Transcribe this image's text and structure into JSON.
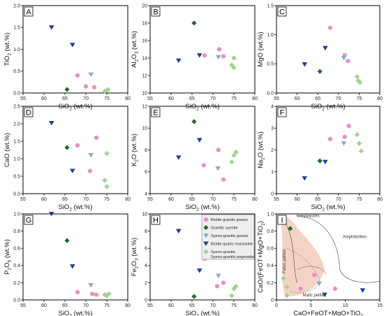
{
  "legend": {
    "items": [
      {
        "label": "Biotite granitic gneiss",
        "marker": "circle",
        "color": "#e78fc0"
      },
      {
        "label": "Granitic syenite",
        "marker": "diamond",
        "color": "#1f6b2a"
      },
      {
        "label": "Syeno-granitic gneiss",
        "marker": "triangle",
        "color": "#8ea3d6"
      },
      {
        "label": "Biotite quartz monzonite",
        "marker": "triangle",
        "color": "#1b3f8f"
      },
      {
        "label": "Syeno-granite",
        "label2": "Syeno-granitic pegmatite",
        "marker": "diamond",
        "color": "#9ad68c"
      }
    ]
  },
  "chart_data": [
    {
      "panel": "A",
      "type": "scatter",
      "ylabel_main": "TiO",
      "ylabel_sub": "2",
      "ylabel_tail": " (wt.%)",
      "xlabel_main": "SiO",
      "xlabel_sub": "2",
      "xlabel_tail": " (wt.%)",
      "xlim": [
        55,
        80
      ],
      "ylim": [
        0,
        2
      ],
      "xticks": [
        "55",
        "60",
        "65",
        "70",
        "75",
        "80"
      ],
      "yticks": [
        "0.0",
        "0.5",
        "1.0",
        "1.5",
        "2.0"
      ],
      "series": [
        {
          "group": "Biotite granitic gneiss",
          "points": [
            [
              68,
              0.4
            ],
            [
              70,
              0.15
            ],
            [
              72,
              0.13
            ]
          ]
        },
        {
          "group": "Granitic syenite",
          "points": [
            [
              65.5,
              0.08
            ]
          ]
        },
        {
          "group": "Syeno-granitic gneiss",
          "points": [
            [
              71.2,
              0.42
            ]
          ]
        },
        {
          "group": "Biotite quartz monzonite",
          "points": [
            [
              61.8,
              1.5
            ],
            [
              66.8,
              1.1
            ]
          ]
        },
        {
          "group": "Syeno-granite",
          "points": [
            [
              74.5,
              0.04
            ],
            [
              75,
              0.06
            ],
            [
              75.3,
              0.08
            ]
          ]
        }
      ]
    },
    {
      "panel": "B",
      "type": "scatter",
      "ylabel_main": "Al",
      "ylabel_sub": "2",
      "ylabel_mid": "O",
      "ylabel_sub2": "3",
      "ylabel_tail": " (wt.%)",
      "xlabel_main": "SiO",
      "xlabel_sub": "2",
      "xlabel_tail": " (wt.%)",
      "xlim": [
        55,
        80
      ],
      "ylim": [
        10,
        20
      ],
      "xticks": [
        "55",
        "60",
        "65",
        "70",
        "75",
        "80"
      ],
      "yticks": [
        "10",
        "12",
        "14",
        "16",
        "18",
        "20"
      ],
      "series": [
        {
          "group": "Biotite granitic gneiss",
          "points": [
            [
              68,
              14.3
            ],
            [
              71.5,
              15.0
            ],
            [
              72.5,
              14.2
            ]
          ]
        },
        {
          "group": "Granitic syenite",
          "points": [
            [
              65.5,
              18.0
            ]
          ]
        },
        {
          "group": "Syeno-granitic gneiss",
          "points": [
            [
              71.3,
              14.1
            ]
          ]
        },
        {
          "group": "Biotite quartz monzonite",
          "points": [
            [
              61.8,
              13.7
            ],
            [
              66.8,
              14.3
            ]
          ]
        },
        {
          "group": "Syeno-granite",
          "points": [
            [
              74.5,
              13.2
            ],
            [
              75,
              12.9
            ],
            [
              75,
              14.0
            ]
          ]
        }
      ]
    },
    {
      "panel": "C",
      "type": "scatter",
      "ylabel_main": "MgO",
      "ylabel_tail": " (wt.%)",
      "xlabel_main": "SiO",
      "xlabel_sub": "2",
      "xlabel_tail": " (wt.%)",
      "xlim": [
        55,
        80
      ],
      "ylim": [
        0,
        1.5
      ],
      "xticks": [
        "55",
        "60",
        "65",
        "70",
        "75",
        "80"
      ],
      "yticks": [
        "0.0",
        "0.5",
        "1.0",
        "1.5"
      ],
      "series": [
        {
          "group": "Biotite granitic gneiss",
          "points": [
            [
              68,
              1.12
            ],
            [
              71.5,
              0.65
            ],
            [
              72.3,
              0.55
            ]
          ]
        },
        {
          "group": "Granitic syenite",
          "points": [
            [
              65.5,
              0.37
            ]
          ]
        },
        {
          "group": "Syeno-granitic gneiss",
          "points": [
            [
              71.3,
              0.6
            ]
          ]
        },
        {
          "group": "Biotite quartz monzonite",
          "points": [
            [
              61.8,
              0.49
            ],
            [
              66.8,
              0.77
            ]
          ]
        },
        {
          "group": "Syeno-granite",
          "points": [
            [
              74.5,
              0.28
            ],
            [
              74.8,
              0.21
            ],
            [
              75.2,
              0.18
            ]
          ]
        }
      ]
    },
    {
      "panel": "D",
      "type": "scatter",
      "ylabel_main": "CaO",
      "ylabel_tail": " (wt.%)",
      "xlabel_main": "SiO",
      "xlabel_sub": "2",
      "xlabel_tail": " (wt.%)",
      "xlim": [
        55,
        80
      ],
      "ylim": [
        0,
        2.5
      ],
      "xticks": [
        "55",
        "60",
        "65",
        "70",
        "75",
        "80"
      ],
      "yticks": [
        "0.0",
        "0.5",
        "1.0",
        "1.5",
        "2.0",
        "2.5"
      ],
      "series": [
        {
          "group": "Biotite granitic gneiss",
          "points": [
            [
              68,
              1.38
            ],
            [
              71,
              0.65
            ],
            [
              72.5,
              1.6
            ]
          ]
        },
        {
          "group": "Granitic syenite",
          "points": [
            [
              65.5,
              1.32
            ]
          ]
        },
        {
          "group": "Syeno-granitic gneiss",
          "points": [
            [
              71.2,
              1.1
            ]
          ]
        },
        {
          "group": "Biotite quartz monzonite",
          "points": [
            [
              61.8,
              2.02
            ],
            [
              66.8,
              0.65
            ]
          ]
        },
        {
          "group": "Syeno-granite",
          "points": [
            [
              74.5,
              0.38
            ],
            [
              75,
              0.2
            ],
            [
              75,
              1.15
            ]
          ]
        }
      ]
    },
    {
      "panel": "E",
      "type": "scatter",
      "ylabel_main": "K",
      "ylabel_sub": "2",
      "ylabel_mid": "O",
      "ylabel_tail": " (wt.%)",
      "xlabel_main": "SiO",
      "xlabel_sub": "2",
      "xlabel_tail": " (wt.%)",
      "xlim": [
        55,
        80
      ],
      "ylim": [
        4,
        12
      ],
      "xticks": [
        "55",
        "60",
        "65",
        "70",
        "75",
        "80"
      ],
      "yticks": [
        "4",
        "6",
        "8",
        "10",
        "12"
      ],
      "series": [
        {
          "group": "Biotite granitic gneiss",
          "points": [
            [
              67.8,
              6.6
            ],
            [
              71.3,
              8.0
            ],
            [
              72.5,
              5.3
            ]
          ]
        },
        {
          "group": "Granitic syenite",
          "points": [
            [
              65.5,
              10.6
            ]
          ]
        },
        {
          "group": "Syeno-granitic gneiss",
          "points": [
            [
              71.2,
              6.3
            ]
          ]
        },
        {
          "group": "Biotite quartz monzonite",
          "points": [
            [
              61.8,
              7.3
            ],
            [
              66.8,
              8.9
            ]
          ]
        },
        {
          "group": "Syeno-granite",
          "points": [
            [
              74.5,
              6.9
            ],
            [
              75,
              7.5
            ],
            [
              75.5,
              7.8
            ]
          ]
        }
      ]
    },
    {
      "panel": "F",
      "type": "scatter",
      "ylabel_main": "Na",
      "ylabel_sub": "2",
      "ylabel_mid": "O",
      "ylabel_tail": " (wt.%)",
      "xlabel_main": "SiO",
      "xlabel_sub": "2",
      "xlabel_tail": " (wt.%)",
      "xlim": [
        55,
        80
      ],
      "ylim": [
        0,
        4
      ],
      "xticks": [
        "55",
        "60",
        "65",
        "70",
        "75",
        "80"
      ],
      "yticks": [
        "0",
        "1",
        "2",
        "3",
        "4"
      ],
      "series": [
        {
          "group": "Biotite granitic gneiss",
          "points": [
            [
              68,
              2.5
            ],
            [
              71.5,
              2.6
            ],
            [
              72.5,
              3.1
            ]
          ]
        },
        {
          "group": "Granitic syenite",
          "points": [
            [
              65.5,
              1.5
            ]
          ]
        },
        {
          "group": "Syeno-granitic gneiss",
          "points": [
            [
              71.3,
              2.3
            ]
          ]
        },
        {
          "group": "Biotite quartz monzonite",
          "points": [
            [
              61.8,
              0.7
            ],
            [
              66.8,
              1.45
            ]
          ]
        },
        {
          "group": "Syeno-granite",
          "points": [
            [
              74.5,
              2.7
            ],
            [
              75,
              2.3
            ],
            [
              75.5,
              1.95
            ]
          ]
        }
      ]
    },
    {
      "panel": "G",
      "type": "scatter",
      "ylabel_main": "P",
      "ylabel_sub": "2",
      "ylabel_mid": "O",
      "ylabel_sub2": "5",
      "ylabel_tail": " (wt.%)",
      "xlabel_main": "SiO",
      "xlabel_sub": "2",
      "xlabel_tail": " (wt.%)",
      "xlim": [
        55,
        80
      ],
      "ylim": [
        0,
        1
      ],
      "xticks": [
        "55",
        "60",
        "65",
        "70",
        "75",
        "80"
      ],
      "yticks": [
        "0.0",
        "0.2",
        "0.4",
        "0.6",
        "0.8",
        "1.0"
      ],
      "series": [
        {
          "group": "Biotite granitic gneiss",
          "points": [
            [
              68,
              0.09
            ],
            [
              71.5,
              0.07
            ],
            [
              72.5,
              0.06
            ]
          ]
        },
        {
          "group": "Granitic syenite",
          "points": [
            [
              65.5,
              0.69
            ]
          ]
        },
        {
          "group": "Syeno-granitic gneiss",
          "points": [
            [
              71.2,
              0.17
            ]
          ]
        },
        {
          "group": "Biotite quartz monzonite",
          "points": [
            [
              61.8,
              1.0
            ],
            [
              66.8,
              0.39
            ]
          ]
        },
        {
          "group": "Syeno-granite",
          "points": [
            [
              74.5,
              0.06
            ],
            [
              75,
              0.05
            ],
            [
              75.5,
              0.07
            ]
          ]
        }
      ]
    },
    {
      "panel": "H",
      "type": "scatter",
      "ylabel_main": "Fe",
      "ylabel_sub": "2",
      "ylabel_mid": "O",
      "ylabel_sub2": "3",
      "ylabel_tail": " (wt.%)",
      "xlabel_main": "SiO",
      "xlabel_sub": "2",
      "xlabel_tail": " (wt.%)",
      "xlim": [
        55,
        80
      ],
      "ylim": [
        0,
        10
      ],
      "xticks": [
        "55",
        "60",
        "65",
        "70",
        "75",
        "80"
      ],
      "yticks": [
        "0",
        "2",
        "4",
        "6",
        "8",
        "10"
      ],
      "series": [
        {
          "group": "Biotite granitic gneiss",
          "points": [
            [
              68,
              4.8
            ],
            [
              71,
              1.6
            ],
            [
              72.5,
              2.0
            ]
          ]
        },
        {
          "group": "Granitic syenite",
          "points": [
            [
              65.5,
              0.4
            ]
          ]
        },
        {
          "group": "Syeno-granitic gneiss",
          "points": [
            [
              71.3,
              2.8
            ]
          ]
        },
        {
          "group": "Biotite quartz monzonite",
          "points": [
            [
              61.8,
              8.0
            ],
            [
              66.8,
              3.4
            ]
          ]
        },
        {
          "group": "Syeno-granite",
          "points": [
            [
              74.5,
              0.5
            ],
            [
              75,
              1.3
            ],
            [
              75.5,
              1.6
            ]
          ]
        }
      ]
    },
    {
      "panel": "I",
      "type": "scatter",
      "ylabel_main": "CaO/(FeOT+MgO+TiO",
      "ylabel_sub": "2",
      "ylabel_tail": ")",
      "xlabel_main": "CaO+FeOT+MgO+TiO",
      "xlabel_sub": "2",
      "xlim": [
        0,
        15
      ],
      "ylim": [
        0,
        1
      ],
      "xticks": [
        "0",
        "5",
        "10",
        "15"
      ],
      "yticks": [
        "0",
        "0.2",
        "0.4",
        "0.6",
        "0.8",
        "1.0"
      ],
      "region_labels": [
        "Greywackes",
        "Amphibolites",
        "Felsic pelites",
        "Mafic pelites"
      ],
      "series": [
        {
          "group": "Biotite granitic gneiss",
          "points": [
            [
              5.5,
              0.29
            ],
            [
              3.5,
              0.13
            ],
            [
              8.5,
              0.13
            ]
          ]
        },
        {
          "group": "Granitic syenite",
          "points": [
            [
              2.0,
              0.83
            ]
          ]
        },
        {
          "group": "Syeno-granitic gneiss",
          "points": [
            [
              6.2,
              0.19
            ]
          ]
        },
        {
          "group": "Biotite quartz monzonite",
          "points": [
            [
              12.5,
              0.11
            ],
            [
              7.0,
              0.06
            ]
          ]
        },
        {
          "group": "Syeno-granite",
          "points": [
            [
              1.0,
              0.25
            ],
            [
              1.5,
              0.05
            ],
            [
              1.5,
              0.15
            ]
          ]
        }
      ]
    }
  ]
}
